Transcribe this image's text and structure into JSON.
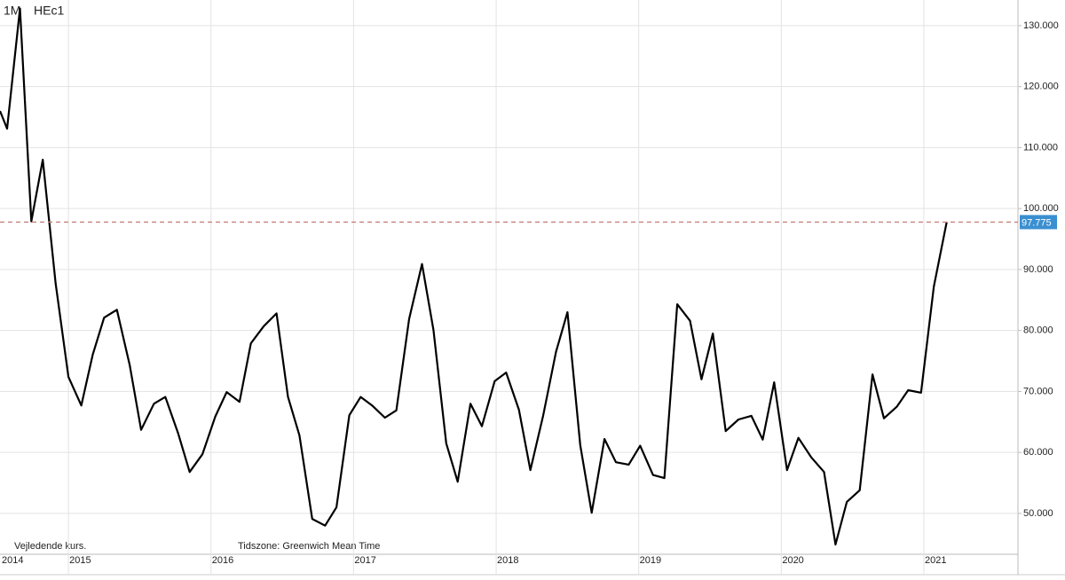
{
  "chart_data": {
    "type": "line",
    "interval": "1M",
    "symbol": "HEc1",
    "footnote": "Vejledende kurs.",
    "timezone": "Tidszone: Greenwich Mean Time",
    "x_start_label": "2014",
    "last_price": 97.775,
    "color": "#000000",
    "grid": true,
    "x": [
      2014.52,
      2014.57,
      2014.66,
      2014.74,
      2014.82,
      2014.91,
      2015.0,
      2015.09,
      2015.17,
      2015.25,
      2015.34,
      2015.43,
      2015.51,
      2015.6,
      2015.68,
      2015.77,
      2015.85,
      2015.94,
      2016.03,
      2016.11,
      2016.2,
      2016.28,
      2016.37,
      2016.46,
      2016.54,
      2016.62,
      2016.71,
      2016.8,
      2016.88,
      2016.97,
      2017.05,
      2017.13,
      2017.22,
      2017.3,
      2017.39,
      2017.48,
      2017.56,
      2017.65,
      2017.73,
      2017.82,
      2017.9,
      2017.99,
      2018.07,
      2018.16,
      2018.24,
      2018.33,
      2018.42,
      2018.5,
      2018.59,
      2018.67,
      2018.76,
      2018.84,
      2018.93,
      2019.01,
      2019.1,
      2019.18,
      2019.27,
      2019.36,
      2019.44,
      2019.52,
      2019.61,
      2019.7,
      2019.79,
      2019.87,
      2019.95,
      2020.04,
      2020.12,
      2020.21,
      2020.3,
      2020.38,
      2020.46,
      2020.55,
      2020.64,
      2020.72,
      2020.81,
      2020.89,
      2020.98,
      2021.07,
      2021.16
    ],
    "values": [
      116.0,
      113.1,
      132.8,
      97.9,
      108.0,
      87.7,
      72.4,
      67.7,
      76.0,
      82.1,
      83.4,
      74.3,
      63.7,
      68.0,
      69.1,
      63.1,
      56.8,
      59.7,
      65.9,
      69.9,
      68.3,
      77.9,
      80.7,
      82.8,
      69.1,
      62.8,
      49.1,
      48.0,
      51.0,
      66.1,
      69.1,
      67.7,
      65.7,
      66.9,
      81.9,
      90.9,
      80.1,
      61.5,
      55.2,
      68.0,
      64.3,
      71.7,
      73.1,
      67.0,
      57.1,
      66.1,
      76.5,
      83.0,
      61.2,
      50.1,
      62.2,
      58.4,
      58.0,
      61.1,
      56.3,
      55.8,
      84.3,
      81.6,
      72.0,
      79.5,
      63.5,
      65.4,
      66.0,
      62.1,
      71.5,
      57.1,
      62.4,
      59.2,
      56.8,
      44.9,
      51.9,
      53.8,
      72.8,
      65.6,
      67.5,
      70.2,
      69.8,
      87.2,
      97.775
    ],
    "xlim": [
      2014.52,
      2021.66
    ],
    "xticks": [
      2015,
      2016,
      2017,
      2018,
      2019,
      2020,
      2021
    ],
    "ylim": [
      43.3,
      134.2
    ],
    "yticks": [
      {
        "value": 50,
        "label": "50.000"
      },
      {
        "value": 60,
        "label": "60.000"
      },
      {
        "value": 70,
        "label": "70.000"
      },
      {
        "value": 80,
        "label": "80.000"
      },
      {
        "value": 90,
        "label": "90.000"
      },
      {
        "value": 100,
        "label": "100.000"
      },
      {
        "value": 110,
        "label": "110.000"
      },
      {
        "value": 120,
        "label": "120.000"
      },
      {
        "value": 130,
        "label": "130.000"
      }
    ]
  }
}
